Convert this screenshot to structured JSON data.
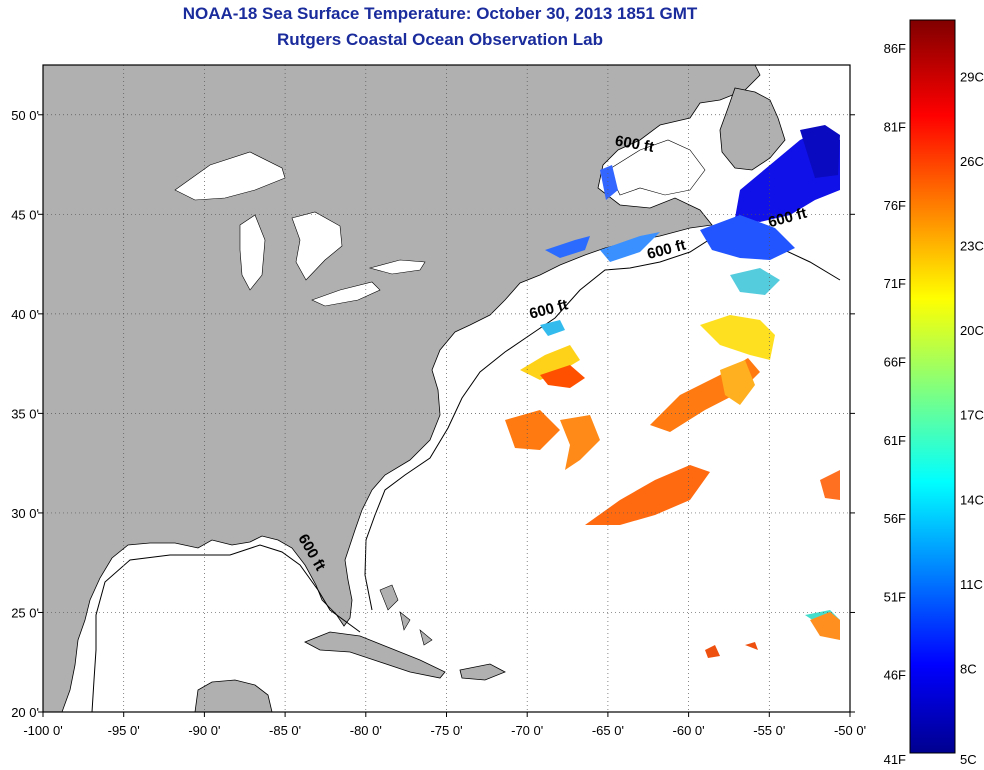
{
  "header": {
    "title": "NOAA-18 Sea Surface Temperature:  October 30, 2013 1851 GMT",
    "subtitle": "Rutgers Coastal Ocean Observation Lab"
  },
  "map": {
    "lon_range": [
      -100,
      -50
    ],
    "lat_range": [
      20,
      52.5
    ],
    "lon_ticks": [
      {
        "value": -100,
        "label": "-100 0'"
      },
      {
        "value": -95,
        "label": "-95 0'"
      },
      {
        "value": -90,
        "label": "-90 0'"
      },
      {
        "value": -85,
        "label": "-85 0'"
      },
      {
        "value": -80,
        "label": "-80 0'"
      },
      {
        "value": -75,
        "label": "-75 0'"
      },
      {
        "value": -70,
        "label": "-70 0'"
      },
      {
        "value": -65,
        "label": "-65 0'"
      },
      {
        "value": -60,
        "label": "-60 0'"
      },
      {
        "value": -55,
        "label": "-55 0'"
      },
      {
        "value": -50,
        "label": "-50 0'"
      }
    ],
    "lat_ticks": [
      {
        "value": 20,
        "label": "20 0'"
      },
      {
        "value": 25,
        "label": "25 0'"
      },
      {
        "value": 30,
        "label": "30 0'"
      },
      {
        "value": 35,
        "label": "35 0'"
      },
      {
        "value": 40,
        "label": "40 0'"
      },
      {
        "value": 45,
        "label": "45 0'"
      },
      {
        "value": 50,
        "label": "50 0'"
      }
    ],
    "grid": "dotted",
    "land_color": "#b0b0b0",
    "contour_labels": [
      {
        "text": "600 ft",
        "lon": -63.4,
        "lat": 48.3
      },
      {
        "text": "600 ft",
        "lon": -53.8,
        "lat": 44.6
      },
      {
        "text": "600 ft",
        "lon": -61.3,
        "lat": 43.0
      },
      {
        "text": "600 ft",
        "lon": -68.6,
        "lat": 40.0
      },
      {
        "text": "600 ft",
        "lon": -83.6,
        "lat": 27.9
      }
    ]
  },
  "colorbar": {
    "min_c": 5,
    "max_c": 31,
    "fahrenheit_labels": [
      "41F",
      "46F",
      "51F",
      "56F",
      "61F",
      "66F",
      "71F",
      "76F",
      "81F",
      "86F"
    ],
    "celsius_labels": [
      "5C",
      "8C",
      "11C",
      "14C",
      "17C",
      "20C",
      "23C",
      "26C",
      "29C"
    ]
  }
}
